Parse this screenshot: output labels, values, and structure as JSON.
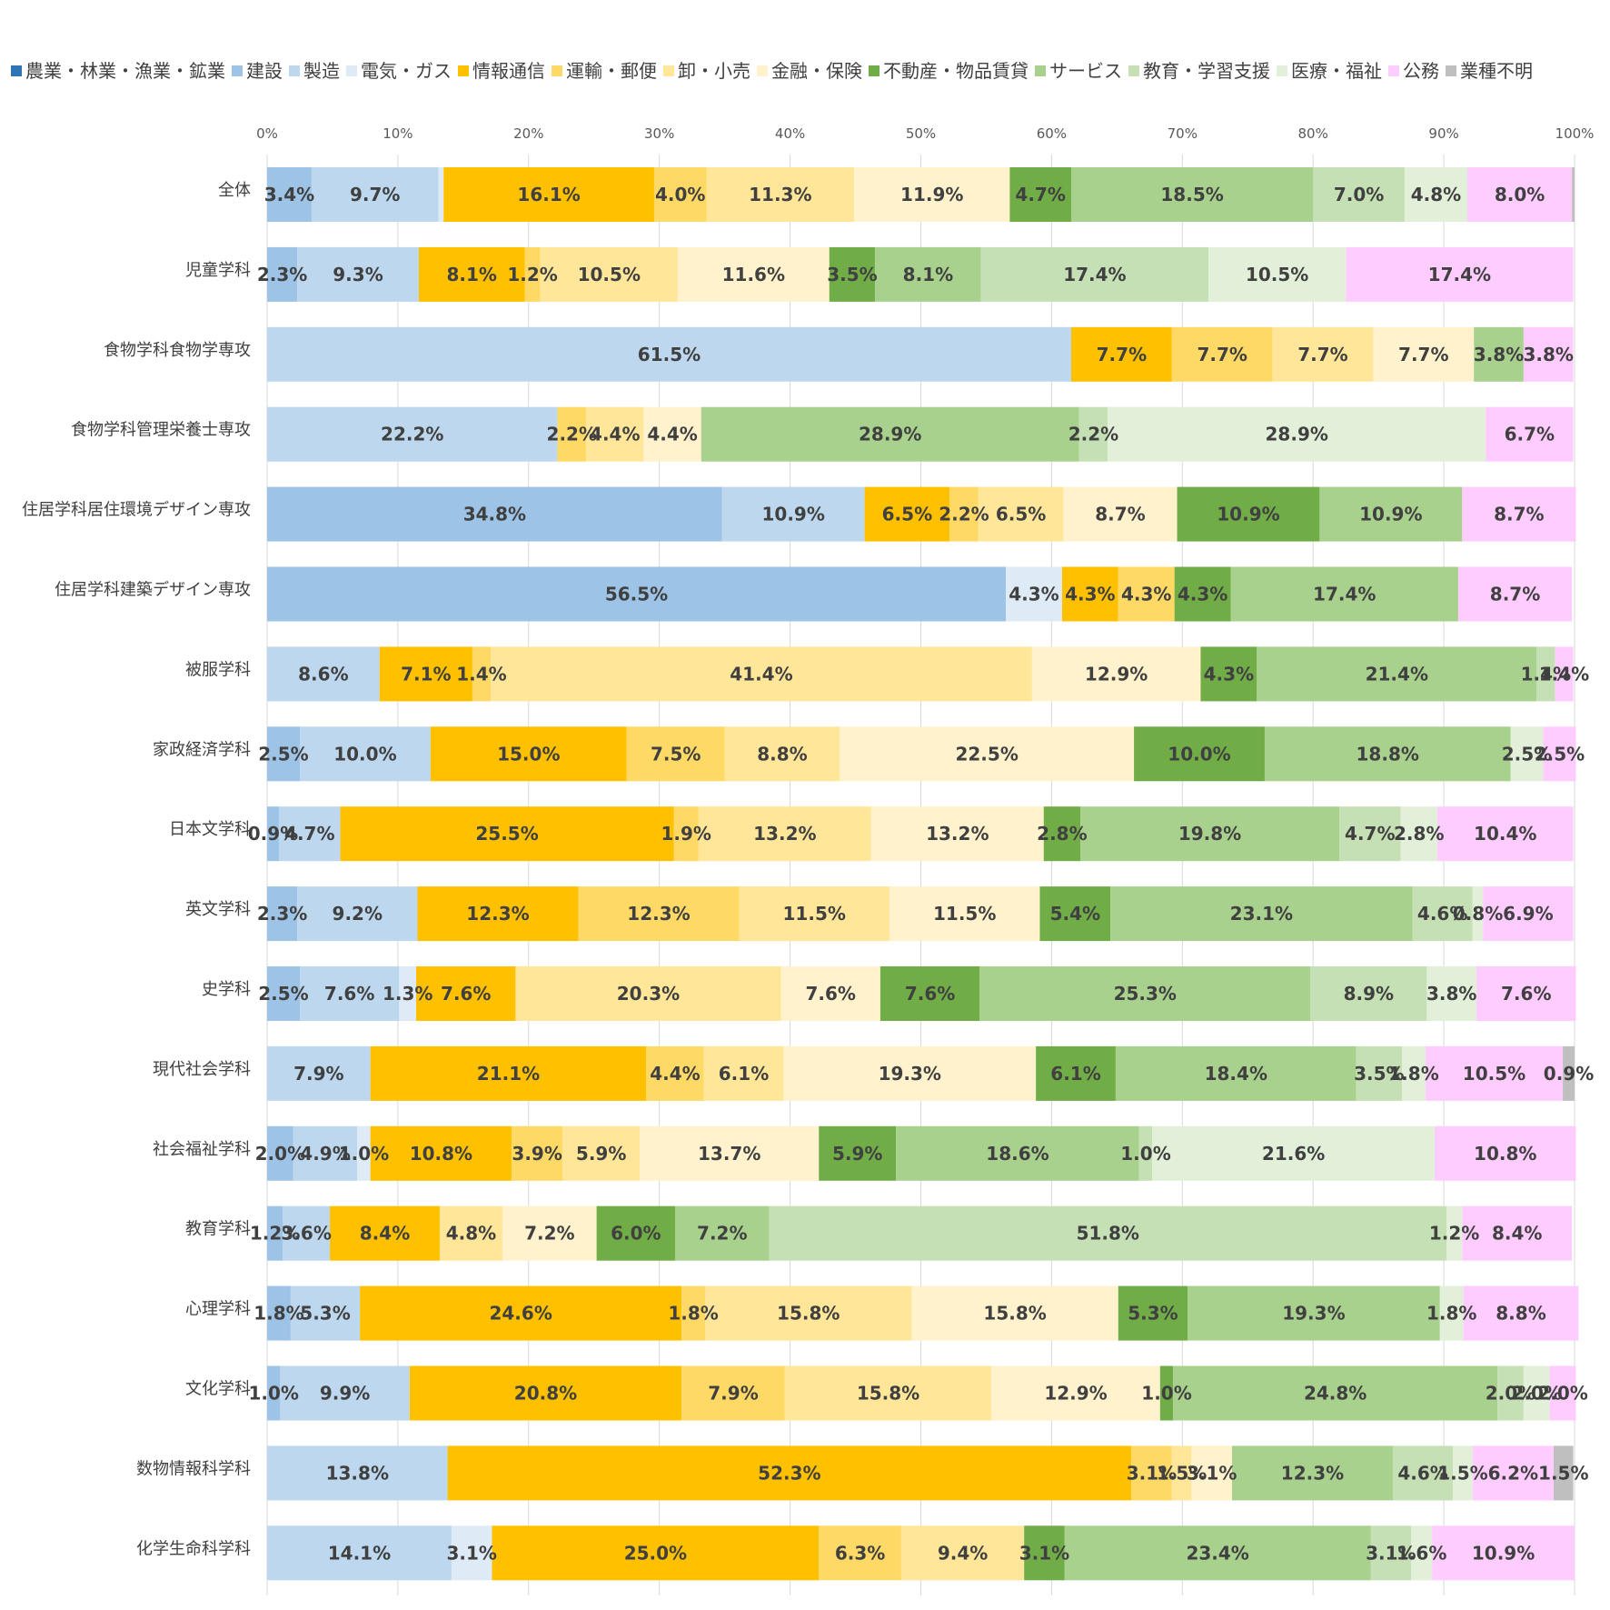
{
  "chart_data": {
    "type": "bar",
    "orientation": "horizontal",
    "stacked": "percent",
    "legend_position": "top",
    "grid": true,
    "xlim": [
      0,
      100
    ],
    "x_ticks": [
      "0%",
      "10%",
      "20%",
      "30%",
      "40%",
      "50%",
      "60%",
      "70%",
      "80%",
      "90%",
      "100%"
    ],
    "categories": [
      "全体",
      "児童学科",
      "食物学科食物学専攻",
      "食物学科管理栄養士専攻",
      "住居学科居住環境デザイン専攻",
      "住居学科建築デザイン専攻",
      "被服学科",
      "家政経済学科",
      "日本文学科",
      "英文学科",
      "史学科",
      "現代社会学科",
      "社会福祉学科",
      "教育学科",
      "心理学科",
      "文化学科",
      "数物情報科学科",
      "化学生命科学科"
    ],
    "series": [
      {
        "name": "農業・林業・漁業・鉱業",
        "color": "#2e75b6",
        "values": [
          0,
          0,
          0,
          0,
          0,
          0,
          0,
          0,
          0,
          0,
          0,
          0,
          0,
          0,
          0,
          0,
          0,
          0
        ]
      },
      {
        "name": "建設",
        "color": "#9dc3e6",
        "values": [
          3.4,
          2.3,
          0,
          0,
          34.8,
          56.5,
          0,
          2.5,
          0.9,
          2.3,
          2.5,
          0,
          2.0,
          1.2,
          1.8,
          1.0,
          0,
          0
        ]
      },
      {
        "name": "製造",
        "color": "#bdd7ee",
        "values": [
          9.7,
          9.3,
          61.5,
          22.2,
          10.9,
          0,
          8.6,
          10.0,
          4.7,
          9.2,
          7.6,
          7.9,
          4.9,
          3.6,
          5.3,
          9.9,
          13.8,
          14.1
        ]
      },
      {
        "name": "電気・ガス",
        "color": "#deebf7",
        "values": [
          0.4,
          0,
          0,
          0,
          0,
          4.3,
          0,
          0,
          0,
          0,
          1.3,
          0,
          1.0,
          0,
          0,
          0,
          0,
          3.1
        ]
      },
      {
        "name": "情報通信",
        "color": "#ffc000",
        "values": [
          16.1,
          8.1,
          7.7,
          0,
          6.5,
          4.3,
          7.1,
          15.0,
          25.5,
          12.3,
          7.6,
          21.1,
          10.8,
          8.4,
          24.6,
          20.8,
          52.3,
          25.0
        ]
      },
      {
        "name": "運輸・郵便",
        "color": "#ffd966",
        "values": [
          4.0,
          1.2,
          7.7,
          2.2,
          2.2,
          4.3,
          1.4,
          7.5,
          1.9,
          12.3,
          0,
          4.4,
          3.9,
          0,
          1.8,
          7.9,
          3.1,
          6.3
        ]
      },
      {
        "name": "卸・小売",
        "color": "#ffe699",
        "values": [
          11.3,
          10.5,
          7.7,
          4.4,
          6.5,
          0,
          41.4,
          8.8,
          13.2,
          11.5,
          20.3,
          6.1,
          5.9,
          4.8,
          15.8,
          15.8,
          1.5,
          9.4
        ]
      },
      {
        "name": "金融・保険",
        "color": "#fff2cc",
        "values": [
          11.9,
          11.6,
          7.7,
          4.4,
          8.7,
          0,
          12.9,
          22.5,
          13.2,
          11.5,
          7.6,
          19.3,
          13.7,
          7.2,
          15.8,
          12.9,
          3.1,
          0
        ]
      },
      {
        "name": "不動産・物品賃貸",
        "color": "#70ad47",
        "values": [
          4.7,
          3.5,
          0,
          0,
          10.9,
          4.3,
          4.3,
          10.0,
          2.8,
          5.4,
          7.6,
          6.1,
          5.9,
          6.0,
          5.3,
          1.0,
          0,
          3.1
        ]
      },
      {
        "name": "サービス",
        "color": "#a9d18e",
        "values": [
          18.5,
          8.1,
          3.8,
          28.9,
          10.9,
          17.4,
          21.4,
          18.8,
          19.8,
          23.1,
          25.3,
          18.4,
          18.6,
          7.2,
          19.3,
          24.8,
          12.3,
          23.4
        ]
      },
      {
        "name": "教育・学習支援",
        "color": "#c5e0b4",
        "values": [
          7.0,
          17.4,
          0,
          2.2,
          0,
          0,
          1.4,
          0,
          4.7,
          4.6,
          8.9,
          3.5,
          1.0,
          51.8,
          0,
          2.0,
          4.6,
          3.1
        ]
      },
      {
        "name": "医療・福祉",
        "color": "#e2f0d9",
        "values": [
          4.8,
          10.5,
          0,
          28.9,
          0,
          0,
          0,
          2.5,
          2.8,
          0.8,
          3.8,
          1.8,
          21.6,
          1.2,
          1.8,
          2.0,
          1.5,
          1.6
        ]
      },
      {
        "name": "公務",
        "color": "#ffccff",
        "values": [
          8.0,
          17.4,
          3.8,
          6.7,
          8.7,
          8.7,
          1.4,
          2.5,
          10.4,
          6.9,
          7.6,
          10.5,
          10.8,
          8.4,
          8.8,
          2.0,
          6.2,
          10.9
        ]
      },
      {
        "name": "業種不明",
        "color": "#bfbfbf",
        "values": [
          0.2,
          0,
          0,
          0,
          0,
          0,
          0,
          0,
          0,
          0,
          0,
          0.9,
          0,
          0,
          0,
          0,
          1.5,
          0
        ]
      }
    ]
  }
}
